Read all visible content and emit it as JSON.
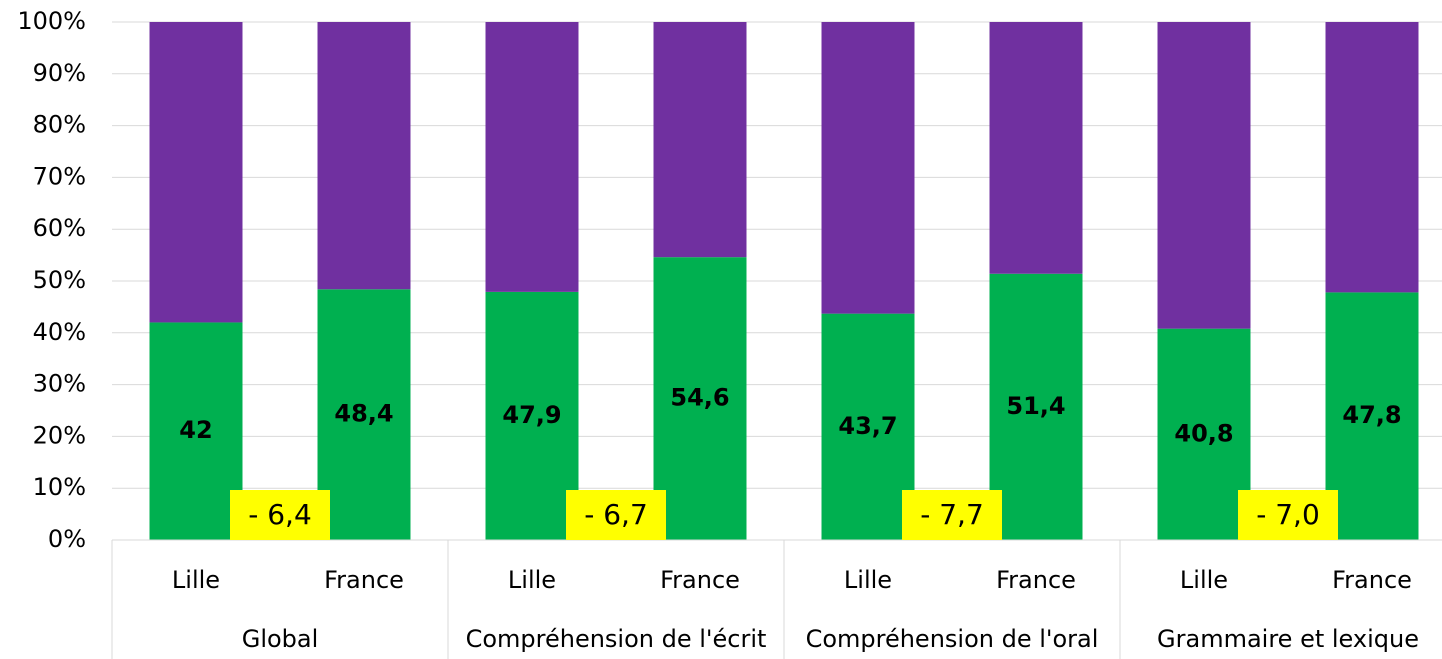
{
  "chart_data": {
    "type": "stacked_bar",
    "categories": [
      "Lille",
      "France",
      "Lille",
      "France",
      "Lille",
      "France",
      "Lille",
      "France"
    ],
    "groups": [
      "Global",
      "Compréhension de l'écrit",
      "Compréhension de l'oral",
      "Grammaire et lexique"
    ],
    "series": [
      {
        "color": "#00b050",
        "values": [
          42,
          48.4,
          47.9,
          54.6,
          43.7,
          51.4,
          40.8,
          47.8
        ],
        "value_labels": [
          "42",
          "48,4",
          "47,9",
          "54,6",
          "43,7",
          "51,4",
          "40,8",
          "47,8"
        ]
      },
      {
        "color": "#7030a0",
        "values": [
          58,
          51.6,
          52.1,
          45.4,
          56.3,
          48.6,
          59.2,
          52.2
        ]
      }
    ],
    "annotations": [
      "- 6,4",
      "- 6,7",
      "- 7,7",
      "- 7,0"
    ],
    "annotation_color": "#ffff00",
    "ylim": [
      0,
      100
    ],
    "yticks": [
      {
        "value": 0,
        "label": "0%"
      },
      {
        "value": 10,
        "label": "10%"
      },
      {
        "value": 20,
        "label": "20%"
      },
      {
        "value": 30,
        "label": "30%"
      },
      {
        "value": 40,
        "label": "40%"
      },
      {
        "value": 50,
        "label": "50%"
      },
      {
        "value": 60,
        "label": "60%"
      },
      {
        "value": 70,
        "label": "70%"
      },
      {
        "value": 80,
        "label": "80%"
      },
      {
        "value": 90,
        "label": "90%"
      },
      {
        "value": 100,
        "label": "100%"
      }
    ],
    "grid": true
  }
}
